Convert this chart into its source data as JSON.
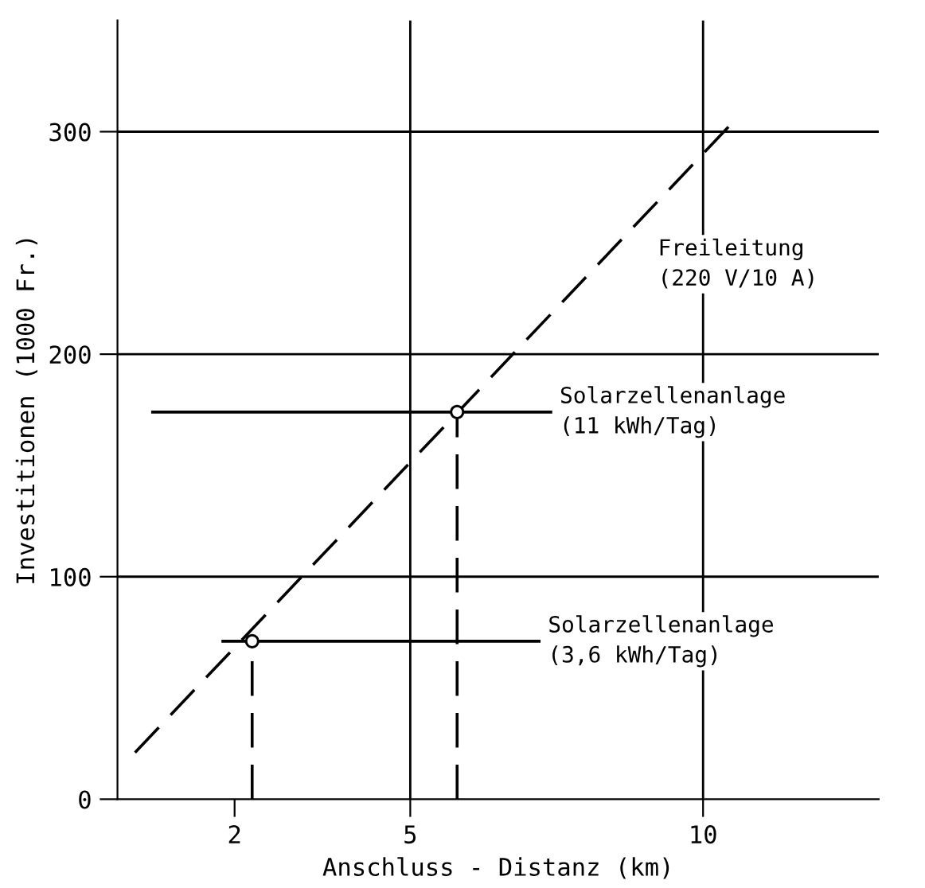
{
  "chart_data": {
    "type": "line",
    "xlabel": "Anschluss - Distanz (km)",
    "ylabel": "Investitionen (1000 Fr.)",
    "xlim": [
      0,
      13
    ],
    "ylim": [
      0,
      350
    ],
    "xticks": [
      2,
      5,
      10
    ],
    "yticks": [
      0,
      100,
      200,
      300
    ],
    "grid": false,
    "legend": false,
    "ref_lines": [
      {
        "axis": "x",
        "value": 5,
        "color": "#000000",
        "line_style": "solid"
      },
      {
        "axis": "x",
        "value": 10,
        "color": "#000000",
        "line_style": "solid"
      },
      {
        "axis": "y",
        "value": 100,
        "color": "#000000",
        "line_style": "solid"
      },
      {
        "axis": "y",
        "value": 200,
        "color": "#000000",
        "line_style": "solid"
      },
      {
        "axis": "y",
        "value": 300,
        "color": "#000000",
        "line_style": "solid"
      }
    ],
    "series": [
      {
        "type": "line",
        "color": "#000000",
        "line_style": "dashed",
        "marker": "none",
        "x": [
          0.3,
          10.5
        ],
        "values": [
          21,
          304
        ]
      },
      {
        "type": "line",
        "color": "#000000",
        "line_style": "solid",
        "marker": "none",
        "x": [
          0.6,
          7.4
        ],
        "values": [
          174,
          174
        ]
      },
      {
        "type": "line",
        "color": "#000000",
        "line_style": "solid",
        "marker": "none",
        "x": [
          1.8,
          7.2
        ],
        "values": [
          71,
          71
        ]
      },
      {
        "type": "line",
        "color": "#000000",
        "line_style": "dashed",
        "marker": "none",
        "x": [
          2.3,
          2.3
        ],
        "values": [
          0,
          71
        ]
      },
      {
        "type": "line",
        "color": "#000000",
        "line_style": "dashed",
        "marker": "none",
        "x": [
          5.8,
          5.8
        ],
        "values": [
          0,
          174
        ]
      },
      {
        "type": "scatter",
        "color": "#000000",
        "marker": "circle",
        "x": [
          2.3,
          5.8
        ],
        "values": [
          71,
          174
        ]
      }
    ],
    "annotations": [
      "Freileitung\n(220 V/10 A)",
      {
        "text": "Solarzellenanlage\n(11 kWh/Tag)",
        "x": 7.4,
        "y": 174
      },
      {
        "text": "Solarzellenanlage\n(3,6 kWh/Tag)",
        "x": 7.2,
        "y": 71
      }
    ]
  }
}
